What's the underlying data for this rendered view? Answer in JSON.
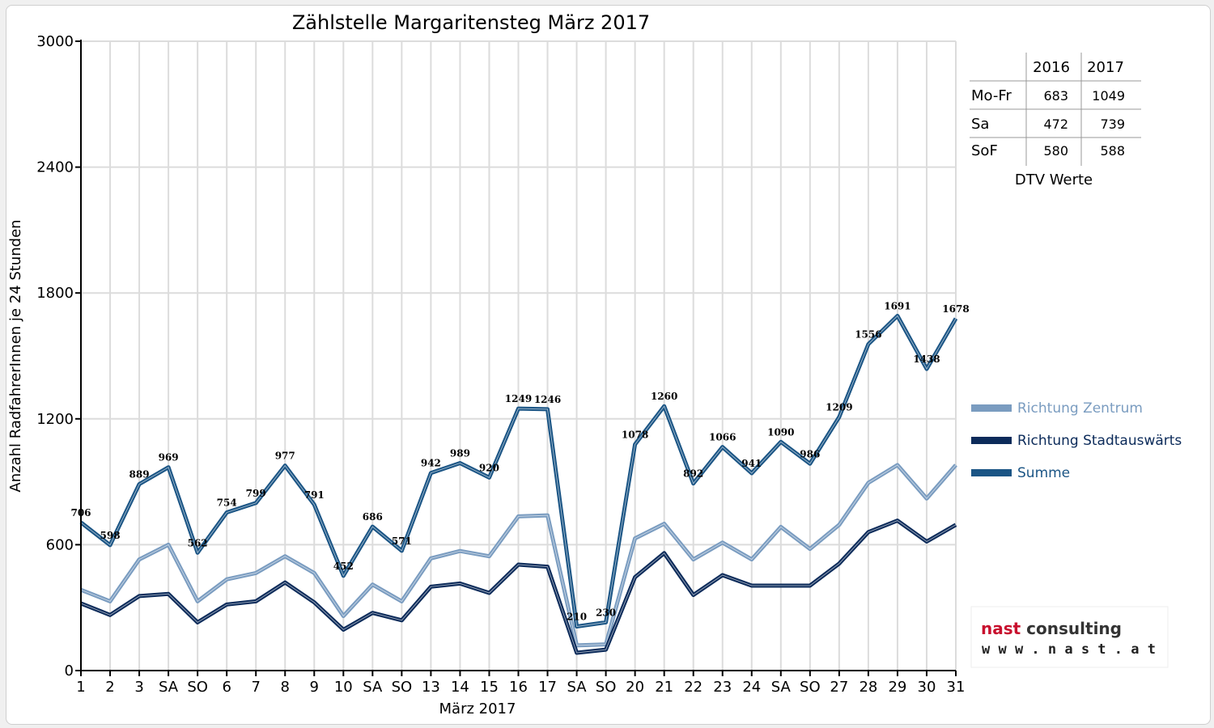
{
  "chart_data": {
    "type": "line",
    "title": "Zählstelle Margaritensteg März 2017",
    "xlabel": "März 2017",
    "ylabel": "Anzahl RadfahrerInnen je 24 Stunden",
    "ylim": [
      0,
      3000
    ],
    "yticks": [
      "0",
      "600",
      "1200",
      "1800",
      "2400",
      "3000"
    ],
    "grid": true,
    "categories": [
      "1",
      "2",
      "3",
      "SA",
      "SO",
      "6",
      "7",
      "8",
      "9",
      "10",
      "SA",
      "SO",
      "13",
      "14",
      "15",
      "16",
      "17",
      "SA",
      "SO",
      "20",
      "21",
      "22",
      "23",
      "24",
      "SA",
      "SO",
      "27",
      "28",
      "29",
      "30",
      "31"
    ],
    "weekend_categories": [
      "SO"
    ],
    "weekend_color": "#ff0000",
    "series": [
      {
        "name": "Richtung Zentrum",
        "color": "#7a9cc0",
        "values": [
          385,
          330,
          530,
          600,
          330,
          435,
          465,
          545,
          465,
          260,
          410,
          330,
          535,
          570,
          545,
          735,
          740,
          120,
          125,
          630,
          700,
          530,
          610,
          530,
          685,
          580,
          695,
          895,
          980,
          820,
          980
        ]
      },
      {
        "name": "Richtung Stadtauswärts",
        "color": "#0c2b5a",
        "values": [
          320,
          265,
          355,
          365,
          230,
          315,
          330,
          420,
          325,
          195,
          275,
          240,
          400,
          415,
          370,
          505,
          495,
          85,
          100,
          445,
          560,
          360,
          455,
          405,
          405,
          405,
          510,
          660,
          715,
          615,
          695
        ]
      },
      {
        "name": "Summe",
        "color": "#1b5585",
        "values": [
          706,
          598,
          889,
          969,
          562,
          754,
          799,
          977,
          791,
          452,
          686,
          571,
          942,
          989,
          920,
          1249,
          1246,
          210,
          230,
          1078,
          1260,
          892,
          1066,
          941,
          1090,
          986,
          1209,
          1556,
          1691,
          1438,
          1678
        ],
        "labels": [
          "706",
          "598",
          "889",
          "969",
          "562",
          "754",
          "799",
          "977",
          "791",
          "452",
          "686",
          "571",
          "942",
          "989",
          "920",
          "1249",
          "1246",
          "210",
          "230",
          "1078",
          "1260",
          "892",
          "1066",
          "941",
          "1090",
          "986",
          "1209",
          "1556",
          "1691",
          "1438",
          "1678"
        ]
      }
    ],
    "legend": {
      "placement": "right"
    }
  },
  "dtv_table": {
    "caption": "DTV Werte",
    "headers": [
      "",
      "2016",
      "2017"
    ],
    "rows": [
      {
        "label": "Mo-Fr",
        "v2016": "683",
        "v2017": "1049"
      },
      {
        "label": "Sa",
        "v2016": "472",
        "v2017": "739"
      },
      {
        "label": "SoF",
        "v2016": "580",
        "v2017": "588"
      }
    ]
  },
  "logo": {
    "brand_part1": "nast",
    "brand_part2": "consulting",
    "website": "w w w . n a s t . a t",
    "color1": "#c8102e",
    "color2": "#333333"
  }
}
